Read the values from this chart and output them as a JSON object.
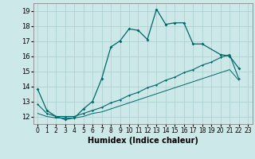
{
  "xlabel": "Humidex (Indice chaleur)",
  "bg_color": "#cce8e8",
  "grid_color": "#aacece",
  "line_color": "#006868",
  "xlim": [
    -0.5,
    23.5
  ],
  "ylim": [
    11.5,
    19.5
  ],
  "xticks": [
    0,
    1,
    2,
    3,
    4,
    5,
    6,
    7,
    8,
    9,
    10,
    11,
    12,
    13,
    14,
    15,
    16,
    17,
    18,
    19,
    20,
    21,
    22,
    23
  ],
  "yticks": [
    12,
    13,
    14,
    15,
    16,
    17,
    18,
    19
  ],
  "series1_x": [
    0,
    1,
    2,
    3,
    4,
    5,
    6,
    7,
    8,
    9,
    10,
    11,
    12,
    13,
    14,
    15,
    16,
    17,
    18,
    20,
    21,
    22
  ],
  "series1_y": [
    13.8,
    12.4,
    12.0,
    11.8,
    11.9,
    12.5,
    13.0,
    14.5,
    16.6,
    17.0,
    17.8,
    17.7,
    17.1,
    19.1,
    18.1,
    18.2,
    18.2,
    16.8,
    16.8,
    16.1,
    16.0,
    15.2
  ],
  "series2_x": [
    0,
    1,
    2,
    3,
    4,
    5,
    6,
    7,
    8,
    9,
    10,
    11,
    12,
    13,
    14,
    15,
    16,
    17,
    18,
    19,
    20,
    21,
    22
  ],
  "series2_y": [
    12.8,
    12.2,
    12.0,
    12.0,
    12.0,
    12.2,
    12.4,
    12.6,
    12.9,
    13.1,
    13.4,
    13.6,
    13.9,
    14.1,
    14.4,
    14.6,
    14.9,
    15.1,
    15.4,
    15.6,
    15.9,
    16.1,
    14.5
  ],
  "series3_x": [
    0,
    1,
    2,
    3,
    4,
    5,
    6,
    7,
    8,
    9,
    10,
    11,
    12,
    13,
    14,
    15,
    16,
    17,
    18,
    19,
    20,
    21,
    22
  ],
  "series3_y": [
    12.2,
    12.0,
    11.9,
    11.9,
    11.9,
    12.0,
    12.2,
    12.3,
    12.5,
    12.7,
    12.9,
    13.1,
    13.3,
    13.5,
    13.7,
    13.9,
    14.1,
    14.3,
    14.5,
    14.7,
    14.9,
    15.1,
    14.4
  ]
}
